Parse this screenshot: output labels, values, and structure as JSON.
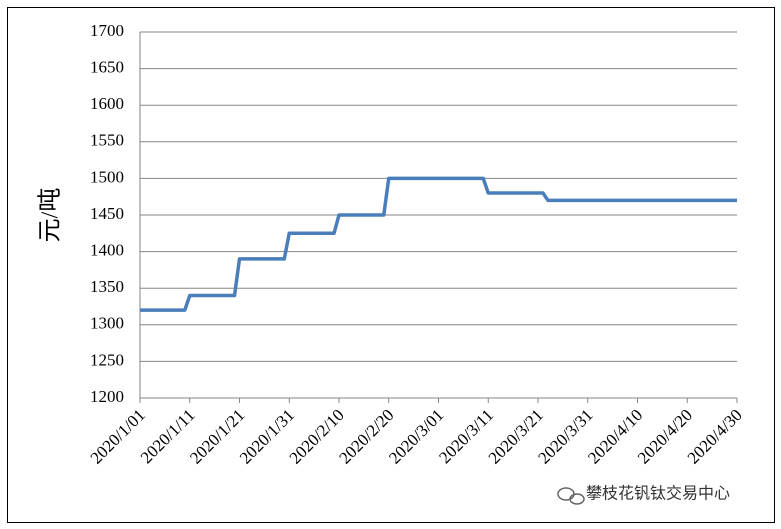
{
  "chart_data": {
    "type": "line",
    "y_label": "元/吨",
    "watermark": "攀枝花钒钛交易中心",
    "x": [
      "2020/1/01",
      "2020/1/10",
      "2020/1/11",
      "2020/1/20",
      "2020/1/21",
      "2020/1/30",
      "2020/1/31",
      "2020/2/09",
      "2020/2/10",
      "2020/2/19",
      "2020/2/20",
      "2020/3/10",
      "2020/3/11",
      "2020/3/22",
      "2020/3/23",
      "2020/4/30"
    ],
    "series": [
      {
        "color": "#4a7ebb",
        "values": [
          1320,
          1320,
          1340,
          1340,
          1390,
          1390,
          1425,
          1425,
          1450,
          1450,
          1500,
          1500,
          1480,
          1480,
          1470,
          1470
        ]
      }
    ],
    "xlim": [
      "2020/1/01",
      "2020/4/30"
    ],
    "xticks": [
      "2020/1/01",
      "2020/1/11",
      "2020/1/21",
      "2020/1/31",
      "2020/2/10",
      "2020/2/20",
      "2020/3/01",
      "2020/3/11",
      "2020/3/21",
      "2020/3/31",
      "2020/4/10",
      "2020/4/20",
      "2020/4/30"
    ],
    "ylim": [
      1200,
      1700
    ],
    "yticks": [
      1200,
      1250,
      1300,
      1350,
      1400,
      1450,
      1500,
      1550,
      1600,
      1650,
      1700
    ],
    "grid": true
  }
}
